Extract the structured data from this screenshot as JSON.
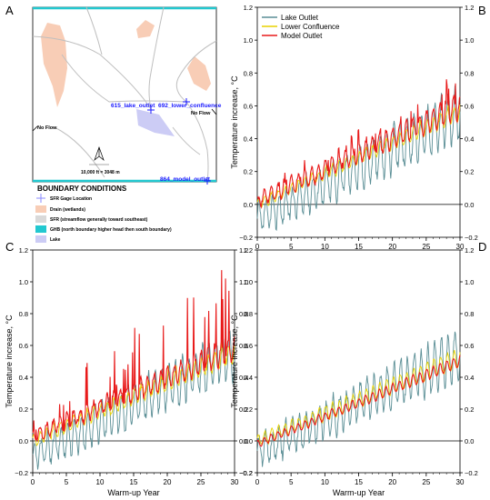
{
  "panels": {
    "a": "A",
    "b": "B",
    "c": "C",
    "d": "D"
  },
  "map": {
    "gages": [
      {
        "label": "615_lake_outlet",
        "color": "#1a1aff"
      },
      {
        "label": "692_lower_confluence",
        "color": "#1a1aff"
      },
      {
        "label": "864_model_outlet",
        "color": "#1a1aff"
      }
    ],
    "no_flow_left": "No Flow",
    "no_flow_right": "No Flow",
    "scale_text": "10,000 ft = 3048 m",
    "legend_title": "BOUNDARY CONDITIONS",
    "legend": [
      {
        "label": "SFR Gage Location",
        "icon": "cross-icon",
        "color": "#8888ff"
      },
      {
        "label": "Drain (wetlands)",
        "icon": "swatch",
        "color": "#f8cdb6"
      },
      {
        "label": "SFR (streamflow generally toward southeast)",
        "icon": "swatch",
        "color": "#d9d9d9"
      },
      {
        "label": "GHB (north boundary higher head then south boundary)",
        "icon": "swatch",
        "color": "#22c8d0"
      },
      {
        "label": "Lake",
        "icon": "swatch",
        "color": "#ccccf5"
      }
    ],
    "colors": {
      "drain": "#f8cdb6",
      "lake": "#ccccf5",
      "ghb": "#22c8d0",
      "stream": "#bfbfbf"
    }
  },
  "chart_data": [
    {
      "id": "B",
      "type": "line",
      "xlabel": "",
      "ylabel": "Temperature increase, °C",
      "xlim": [
        0,
        30
      ],
      "ylim": [
        -0.2,
        1.2
      ],
      "x_ticks": [
        0,
        5,
        10,
        15,
        20,
        25,
        30
      ],
      "y_ticks": [
        -0.2,
        0.0,
        0.2,
        0.4,
        0.6,
        0.8,
        1.0,
        1.2
      ],
      "y_tick_labels": [
        "−0.2",
        "0.0",
        "0.2",
        "0.4",
        "0.6",
        "0.8",
        "1.0",
        "1.2"
      ],
      "zero_line": true,
      "legend_position": "top-left",
      "series": [
        {
          "name": "Lake Outlet",
          "color": "#5a8e95",
          "base": [
            -0.1,
            0.55
          ],
          "amp": 0.13,
          "spikes": 0.0,
          "smooth": 0.3
        },
        {
          "name": "Lower Confluence",
          "color": "#e8d200",
          "base": [
            0.0,
            0.56
          ],
          "amp": 0.04,
          "spikes": 0.03,
          "smooth": 0.5
        },
        {
          "name": "Model Outlet",
          "color": "#e81a1a",
          "base": [
            0.02,
            0.6
          ],
          "amp": 0.06,
          "spikes": 0.12,
          "smooth": 0.4
        }
      ]
    },
    {
      "id": "C",
      "type": "line",
      "xlabel": "Warm-up Year",
      "ylabel": "Temperature increase, °C",
      "xlim": [
        0,
        30
      ],
      "ylim": [
        -0.2,
        1.2
      ],
      "x_ticks": [
        0,
        5,
        10,
        15,
        20,
        25,
        30
      ],
      "y_ticks": [
        -0.2,
        0.0,
        0.2,
        0.4,
        0.6,
        0.8,
        1.0,
        1.2
      ],
      "y_tick_labels": [
        "−0.2",
        "0.0",
        "0.2",
        "0.4",
        "0.6",
        "0.8",
        "1.0",
        "1.2"
      ],
      "zero_line": true,
      "series": [
        {
          "name": "Lake Outlet",
          "color": "#5a8e95",
          "base": [
            -0.1,
            0.55
          ],
          "amp": 0.13,
          "spikes": 0.0,
          "smooth": 0.3
        },
        {
          "name": "Lower Confluence",
          "color": "#e8d200",
          "base": [
            0.0,
            0.55
          ],
          "amp": 0.05,
          "spikes": 0.05,
          "smooth": 0.5
        },
        {
          "name": "Model Outlet",
          "color": "#e81a1a",
          "base": [
            0.03,
            0.58
          ],
          "amp": 0.06,
          "spikes": 0.4,
          "smooth": 0.15
        }
      ]
    },
    {
      "id": "D",
      "type": "line",
      "xlabel": "Warm-up Year",
      "ylabel": "Temperature increase, °C",
      "xlim": [
        0,
        30
      ],
      "ylim": [
        -0.2,
        1.2
      ],
      "x_ticks": [
        0,
        5,
        10,
        15,
        20,
        25,
        30
      ],
      "y_ticks": [
        -0.2,
        0.0,
        0.2,
        0.4,
        0.6,
        0.8,
        1.0,
        1.2
      ],
      "y_tick_labels": [
        "−0.2",
        "0.0",
        "0.2",
        "0.4",
        "0.6",
        "0.8",
        "1.0",
        "1.2"
      ],
      "zero_line": true,
      "series": [
        {
          "name": "Lake Outlet",
          "color": "#5a8e95",
          "base": [
            -0.08,
            0.55
          ],
          "amp": 0.13,
          "spikes": 0.0,
          "smooth": 0.3
        },
        {
          "name": "Lower Confluence",
          "color": "#e8d200",
          "base": [
            0.0,
            0.52
          ],
          "amp": 0.05,
          "spikes": 0.0,
          "smooth": 0.5
        },
        {
          "name": "Model Outlet",
          "color": "#e81a1a",
          "base": [
            -0.02,
            0.5
          ],
          "amp": 0.03,
          "spikes": 0.0,
          "smooth": 0.6
        }
      ]
    }
  ]
}
